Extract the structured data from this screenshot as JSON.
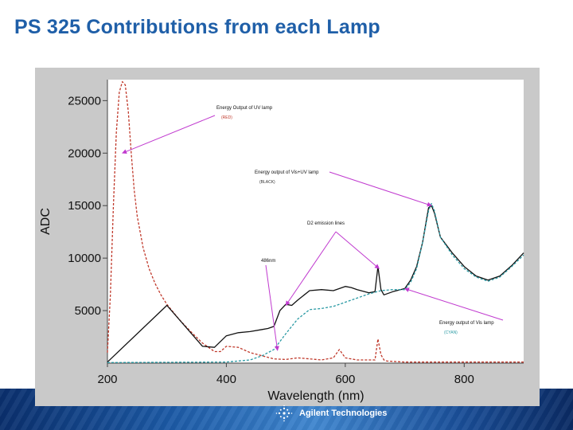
{
  "slide": {
    "title": "PS 325 Contributions from each Lamp",
    "footer_logo": "Agilent Technologies"
  },
  "colors": {
    "title": "#1f5fa8",
    "uv": "#c0392b",
    "vis_uv": "#111111",
    "vis": "#2a9aa4",
    "annotation_arrow": "#c03acf"
  },
  "chart_data": {
    "type": "line",
    "title": "",
    "xlabel": "Wavelength (nm)",
    "ylabel": "ADC",
    "xlim": [
      200,
      900
    ],
    "ylim": [
      0,
      27000
    ],
    "xticks": [
      200,
      400,
      600,
      800
    ],
    "xtick_labels": [
      "200",
      "400",
      "600",
      "800"
    ],
    "yticks": [
      5000,
      10000,
      15000,
      20000,
      25000
    ],
    "ytick_labels": [
      "5000",
      "10000",
      "15000",
      "20000",
      "25000"
    ],
    "grid": false,
    "legend": "none",
    "series": [
      {
        "key": "uv",
        "style": "dashed",
        "x": [
          200,
          205,
          210,
          215,
          220,
          225,
          230,
          235,
          240,
          245,
          250,
          255,
          260,
          270,
          280,
          290,
          300,
          320,
          340,
          360,
          380,
          390,
          400,
          420,
          440,
          460,
          480,
          500,
          520,
          540,
          560,
          580,
          590,
          600,
          620,
          640,
          650,
          655,
          660,
          665,
          670,
          700,
          750,
          800,
          850,
          900
        ],
        "y": [
          1000,
          6500,
          15000,
          22000,
          25800,
          26800,
          26500,
          24000,
          20000,
          16500,
          14000,
          12500,
          11000,
          9000,
          7600,
          6500,
          5600,
          4200,
          3000,
          1900,
          1100,
          1100,
          1600,
          1500,
          1000,
          700,
          400,
          350,
          500,
          400,
          300,
          500,
          1300,
          500,
          300,
          300,
          300,
          2300,
          800,
          300,
          200,
          100,
          100,
          100,
          100,
          100
        ]
      },
      {
        "key": "vis_uv",
        "style": "solid",
        "x": [
          200,
          300,
          360,
          380,
          400,
          420,
          440,
          460,
          470,
          480,
          490,
          500,
          510,
          520,
          540,
          560,
          580,
          600,
          610,
          620,
          640,
          650,
          655,
          660,
          665,
          680,
          700,
          710,
          720,
          730,
          740,
          745,
          750,
          760,
          780,
          800,
          820,
          840,
          860,
          880,
          900
        ],
        "y": [
          100,
          5500,
          1600,
          1500,
          2600,
          2900,
          3000,
          3200,
          3300,
          3500,
          5000,
          5600,
          5500,
          6000,
          6900,
          7000,
          6900,
          7300,
          7200,
          7000,
          6700,
          6800,
          9200,
          7000,
          6500,
          6800,
          7100,
          7900,
          9200,
          11500,
          14800,
          15000,
          14300,
          12000,
          10500,
          9200,
          8300,
          7900,
          8300,
          9300,
          10500
        ]
      },
      {
        "key": "vis",
        "style": "dashed",
        "x": [
          200,
          400,
          440,
          460,
          480,
          500,
          520,
          540,
          560,
          580,
          600,
          620,
          640,
          660,
          680,
          700,
          710,
          720,
          730,
          740,
          745,
          750,
          760,
          780,
          800,
          820,
          840,
          860,
          880,
          900
        ],
        "y": [
          50,
          100,
          300,
          700,
          1300,
          2800,
          4200,
          5100,
          5200,
          5400,
          5800,
          6200,
          6600,
          6900,
          7000,
          7000,
          7700,
          9000,
          11500,
          14500,
          15200,
          14500,
          12000,
          10300,
          9000,
          8200,
          7800,
          8200,
          9200,
          10300
        ]
      }
    ],
    "annotations": [
      {
        "key": "uv_lamp",
        "text": "Energy Output of UV lamp",
        "sub": "(RED)",
        "target_x": 225,
        "target_y": 20000
      },
      {
        "key": "visuv_lamp",
        "text": "Energy output of Vis+UV lamp",
        "sub": "(BLACK)",
        "target_x": 745,
        "target_y": 15000
      },
      {
        "key": "d2_lines",
        "text": "D2 emission lines",
        "sub": "",
        "target_x": 500,
        "target_y": 5500,
        "target2_x": 657,
        "target2_y": 9000
      },
      {
        "key": "mark_486",
        "text": "486nm",
        "sub": "",
        "target_x": 486,
        "target_y": 1200
      },
      {
        "key": "vis_lamp",
        "text": "Energy output of Vis lamp",
        "sub": "(CYAN)",
        "target_x": 700,
        "target_y": 7100
      }
    ]
  }
}
